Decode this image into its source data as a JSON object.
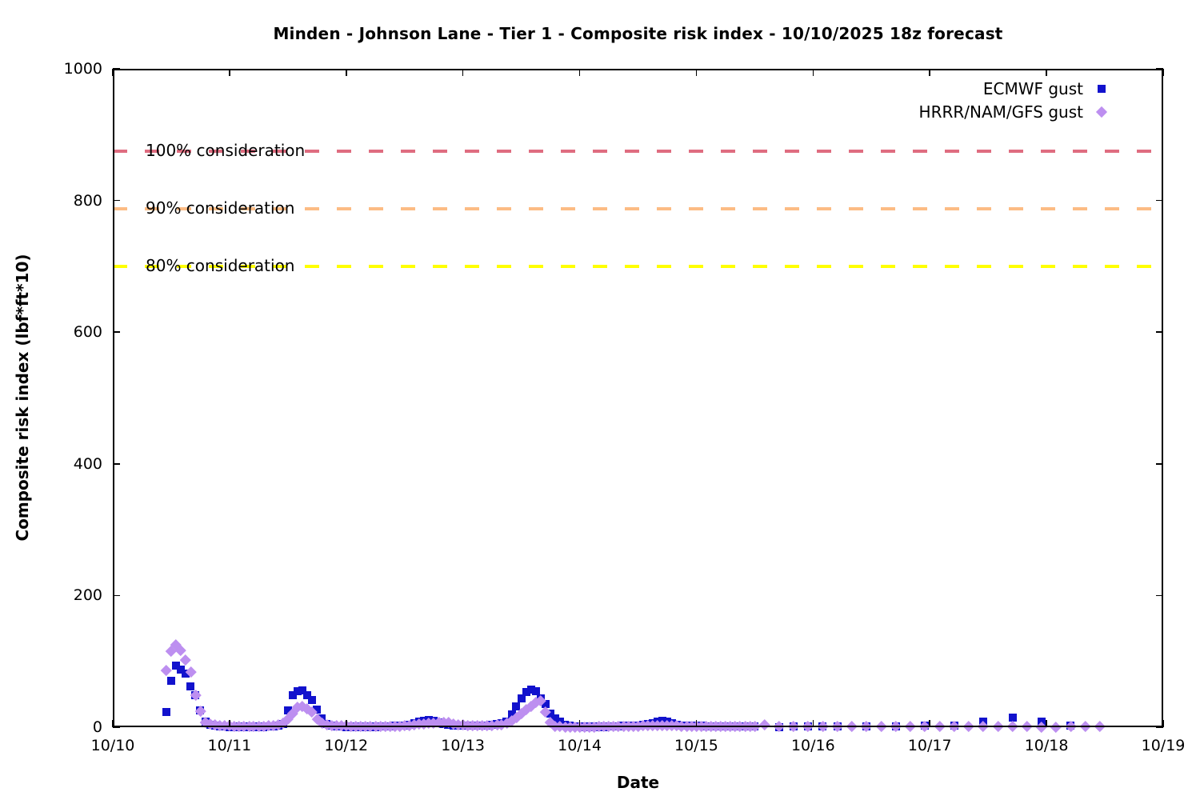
{
  "chart_data": {
    "type": "scatter",
    "title": "Minden - Johnson Lane - Tier 1 - Composite risk index - 10/10/2025 18z forecast",
    "xlabel": "Date",
    "ylabel": "Composite risk index (lbf*ft*10)",
    "x_unit": "days since 10/10 00:00",
    "x_tick_labels": [
      "10/10",
      "10/11",
      "10/12",
      "10/13",
      "10/14",
      "10/15",
      "10/16",
      "10/17",
      "10/18",
      "10/19"
    ],
    "x_tick_values": [
      0,
      1,
      2,
      3,
      4,
      5,
      6,
      7,
      8,
      9
    ],
    "xlim_days": [
      0,
      9
    ],
    "y_ticks": [
      0,
      200,
      400,
      600,
      800,
      1000
    ],
    "ylim": [
      0,
      1000
    ],
    "grid": false,
    "legend_position": "top-right",
    "thresholds": [
      {
        "label": "100% consideration",
        "value": 875,
        "color": "#df6d80"
      },
      {
        "label": "90% consideration",
        "value": 787.5,
        "color": "#fcbc84"
      },
      {
        "label": "80% consideration",
        "value": 700,
        "color": "#ffff00"
      }
    ],
    "series": [
      {
        "name": "ECMWF gust",
        "marker": "square",
        "color": "#1212cd",
        "points": [
          [
            0.458,
            23
          ],
          [
            0.5,
            70
          ],
          [
            0.542,
            94
          ],
          [
            0.583,
            88
          ],
          [
            0.625,
            82
          ],
          [
            0.667,
            62
          ],
          [
            0.708,
            48
          ],
          [
            0.75,
            25
          ],
          [
            0.792,
            8
          ],
          [
            0.833,
            4
          ],
          [
            0.875,
            2
          ],
          [
            0.917,
            1
          ],
          [
            0.958,
            1
          ],
          [
            1.0,
            0
          ],
          [
            1.042,
            0
          ],
          [
            1.083,
            1
          ],
          [
            1.125,
            0
          ],
          [
            1.167,
            1
          ],
          [
            1.208,
            0
          ],
          [
            1.25,
            1
          ],
          [
            1.292,
            0
          ],
          [
            1.333,
            1
          ],
          [
            1.375,
            1
          ],
          [
            1.417,
            2
          ],
          [
            1.458,
            5
          ],
          [
            1.5,
            25
          ],
          [
            1.542,
            49
          ],
          [
            1.583,
            55
          ],
          [
            1.625,
            56
          ],
          [
            1.667,
            48
          ],
          [
            1.708,
            41
          ],
          [
            1.75,
            27
          ],
          [
            1.792,
            13
          ],
          [
            1.833,
            5
          ],
          [
            1.875,
            2
          ],
          [
            1.917,
            1
          ],
          [
            1.958,
            1
          ],
          [
            2.0,
            0
          ],
          [
            2.042,
            1
          ],
          [
            2.083,
            0
          ],
          [
            2.125,
            1
          ],
          [
            2.167,
            0
          ],
          [
            2.208,
            1
          ],
          [
            2.25,
            0
          ],
          [
            2.292,
            1
          ],
          [
            2.333,
            1
          ],
          [
            2.375,
            1
          ],
          [
            2.417,
            2
          ],
          [
            2.458,
            2
          ],
          [
            2.5,
            3
          ],
          [
            2.542,
            4
          ],
          [
            2.583,
            6
          ],
          [
            2.625,
            8
          ],
          [
            2.667,
            10
          ],
          [
            2.708,
            11
          ],
          [
            2.75,
            10
          ],
          [
            2.792,
            7
          ],
          [
            2.833,
            5
          ],
          [
            2.875,
            4
          ],
          [
            2.917,
            3
          ],
          [
            2.958,
            3
          ],
          [
            3.0,
            3
          ],
          [
            3.042,
            2
          ],
          [
            3.083,
            2
          ],
          [
            3.125,
            3
          ],
          [
            3.167,
            3
          ],
          [
            3.208,
            3
          ],
          [
            3.25,
            4
          ],
          [
            3.292,
            5
          ],
          [
            3.333,
            6
          ],
          [
            3.375,
            8
          ],
          [
            3.417,
            20
          ],
          [
            3.458,
            31
          ],
          [
            3.5,
            44
          ],
          [
            3.542,
            53
          ],
          [
            3.583,
            57
          ],
          [
            3.625,
            55
          ],
          [
            3.667,
            44
          ],
          [
            3.708,
            35
          ],
          [
            3.75,
            21
          ],
          [
            3.792,
            13
          ],
          [
            3.833,
            8
          ],
          [
            3.875,
            4
          ],
          [
            3.917,
            2
          ],
          [
            3.958,
            1
          ],
          [
            4.0,
            1
          ],
          [
            4.042,
            0
          ],
          [
            4.083,
            1
          ],
          [
            4.125,
            0
          ],
          [
            4.167,
            1
          ],
          [
            4.208,
            0
          ],
          [
            4.25,
            1
          ],
          [
            4.292,
            1
          ],
          [
            4.333,
            1
          ],
          [
            4.375,
            2
          ],
          [
            4.417,
            2
          ],
          [
            4.458,
            3
          ],
          [
            4.5,
            3
          ],
          [
            4.542,
            4
          ],
          [
            4.583,
            5
          ],
          [
            4.625,
            6
          ],
          [
            4.667,
            9
          ],
          [
            4.708,
            10
          ],
          [
            4.75,
            9
          ],
          [
            4.792,
            6
          ],
          [
            4.833,
            4
          ],
          [
            4.875,
            3
          ],
          [
            4.917,
            3
          ],
          [
            4.958,
            2
          ],
          [
            5.0,
            2
          ],
          [
            5.042,
            2
          ],
          [
            5.083,
            1
          ],
          [
            5.125,
            1
          ],
          [
            5.167,
            1
          ],
          [
            5.208,
            1
          ],
          [
            5.25,
            1
          ],
          [
            5.292,
            1
          ],
          [
            5.333,
            1
          ],
          [
            5.375,
            1
          ],
          [
            5.417,
            1
          ],
          [
            5.458,
            1
          ],
          [
            5.5,
            1
          ],
          [
            5.708,
            0
          ],
          [
            5.833,
            1
          ],
          [
            5.958,
            1
          ],
          [
            6.083,
            1
          ],
          [
            6.208,
            1
          ],
          [
            6.458,
            1
          ],
          [
            6.708,
            1
          ],
          [
            6.958,
            2
          ],
          [
            7.208,
            2
          ],
          [
            7.458,
            8
          ],
          [
            7.708,
            15
          ],
          [
            7.958,
            9
          ],
          [
            8.208,
            3
          ]
        ]
      },
      {
        "name": "HRRR/NAM/GFS gust",
        "marker": "diamond",
        "color": "#bd8ff0",
        "points": [
          [
            0.458,
            86
          ],
          [
            0.5,
            116
          ],
          [
            0.542,
            126
          ],
          [
            0.583,
            117
          ],
          [
            0.625,
            102
          ],
          [
            0.667,
            84
          ],
          [
            0.708,
            49
          ],
          [
            0.75,
            25
          ],
          [
            0.792,
            8
          ],
          [
            0.833,
            5
          ],
          [
            0.875,
            4
          ],
          [
            0.917,
            3
          ],
          [
            0.958,
            3
          ],
          [
            1.0,
            3
          ],
          [
            1.042,
            2
          ],
          [
            1.083,
            2
          ],
          [
            1.125,
            2
          ],
          [
            1.167,
            2
          ],
          [
            1.208,
            2
          ],
          [
            1.25,
            2
          ],
          [
            1.292,
            2
          ],
          [
            1.333,
            3
          ],
          [
            1.375,
            3
          ],
          [
            1.417,
            4
          ],
          [
            1.458,
            6
          ],
          [
            1.5,
            13
          ],
          [
            1.542,
            21
          ],
          [
            1.583,
            31
          ],
          [
            1.625,
            32
          ],
          [
            1.667,
            28
          ],
          [
            1.708,
            23
          ],
          [
            1.75,
            13
          ],
          [
            1.792,
            6
          ],
          [
            1.833,
            4
          ],
          [
            1.875,
            3
          ],
          [
            1.917,
            3
          ],
          [
            1.958,
            3
          ],
          [
            2.0,
            3
          ],
          [
            2.042,
            2
          ],
          [
            2.083,
            2
          ],
          [
            2.125,
            2
          ],
          [
            2.167,
            2
          ],
          [
            2.208,
            2
          ],
          [
            2.25,
            2
          ],
          [
            2.292,
            2
          ],
          [
            2.333,
            2
          ],
          [
            2.375,
            2
          ],
          [
            2.417,
            2
          ],
          [
            2.458,
            2
          ],
          [
            2.5,
            3
          ],
          [
            2.542,
            3
          ],
          [
            2.583,
            4
          ],
          [
            2.625,
            5
          ],
          [
            2.667,
            5
          ],
          [
            2.708,
            6
          ],
          [
            2.75,
            6
          ],
          [
            2.792,
            7
          ],
          [
            2.833,
            8
          ],
          [
            2.875,
            7
          ],
          [
            2.917,
            5
          ],
          [
            2.958,
            4
          ],
          [
            3.0,
            4
          ],
          [
            3.042,
            3
          ],
          [
            3.083,
            3
          ],
          [
            3.125,
            3
          ],
          [
            3.167,
            3
          ],
          [
            3.208,
            3
          ],
          [
            3.25,
            3
          ],
          [
            3.292,
            4
          ],
          [
            3.333,
            4
          ],
          [
            3.375,
            6
          ],
          [
            3.417,
            10
          ],
          [
            3.458,
            15
          ],
          [
            3.5,
            21
          ],
          [
            3.542,
            27
          ],
          [
            3.583,
            32
          ],
          [
            3.625,
            38
          ],
          [
            3.667,
            41
          ],
          [
            3.708,
            23
          ],
          [
            3.75,
            8
          ],
          [
            3.792,
            2
          ],
          [
            3.833,
            1
          ],
          [
            3.875,
            0
          ],
          [
            3.917,
            0
          ],
          [
            3.958,
            0
          ],
          [
            4.0,
            0
          ],
          [
            4.042,
            0
          ],
          [
            4.083,
            0
          ],
          [
            4.125,
            0
          ],
          [
            4.167,
            1
          ],
          [
            4.208,
            1
          ],
          [
            4.25,
            1
          ],
          [
            4.292,
            1
          ],
          [
            4.333,
            2
          ],
          [
            4.375,
            2
          ],
          [
            4.417,
            2
          ],
          [
            4.458,
            2
          ],
          [
            4.5,
            2
          ],
          [
            4.542,
            3
          ],
          [
            4.583,
            3
          ],
          [
            4.625,
            3
          ],
          [
            4.667,
            3
          ],
          [
            4.708,
            3
          ],
          [
            4.75,
            3
          ],
          [
            4.792,
            3
          ],
          [
            4.833,
            3
          ],
          [
            4.875,
            2
          ],
          [
            4.917,
            2
          ],
          [
            4.958,
            2
          ],
          [
            5.0,
            2
          ],
          [
            5.042,
            2
          ],
          [
            5.083,
            2
          ],
          [
            5.125,
            2
          ],
          [
            5.167,
            2
          ],
          [
            5.208,
            2
          ],
          [
            5.25,
            2
          ],
          [
            5.292,
            1
          ],
          [
            5.333,
            1
          ],
          [
            5.375,
            1
          ],
          [
            5.417,
            1
          ],
          [
            5.458,
            1
          ],
          [
            5.5,
            1
          ],
          [
            5.583,
            4
          ],
          [
            5.708,
            2
          ],
          [
            5.833,
            2
          ],
          [
            5.958,
            2
          ],
          [
            6.083,
            2
          ],
          [
            6.208,
            1
          ],
          [
            6.333,
            1
          ],
          [
            6.458,
            1
          ],
          [
            6.583,
            1
          ],
          [
            6.708,
            1
          ],
          [
            6.833,
            1
          ],
          [
            6.958,
            1
          ],
          [
            7.083,
            1
          ],
          [
            7.208,
            1
          ],
          [
            7.333,
            1
          ],
          [
            7.458,
            1
          ],
          [
            7.583,
            1
          ],
          [
            7.708,
            1
          ],
          [
            7.833,
            1
          ],
          [
            7.958,
            0
          ],
          [
            8.083,
            0
          ],
          [
            8.208,
            2
          ],
          [
            8.333,
            1
          ],
          [
            8.458,
            1
          ]
        ]
      }
    ]
  }
}
